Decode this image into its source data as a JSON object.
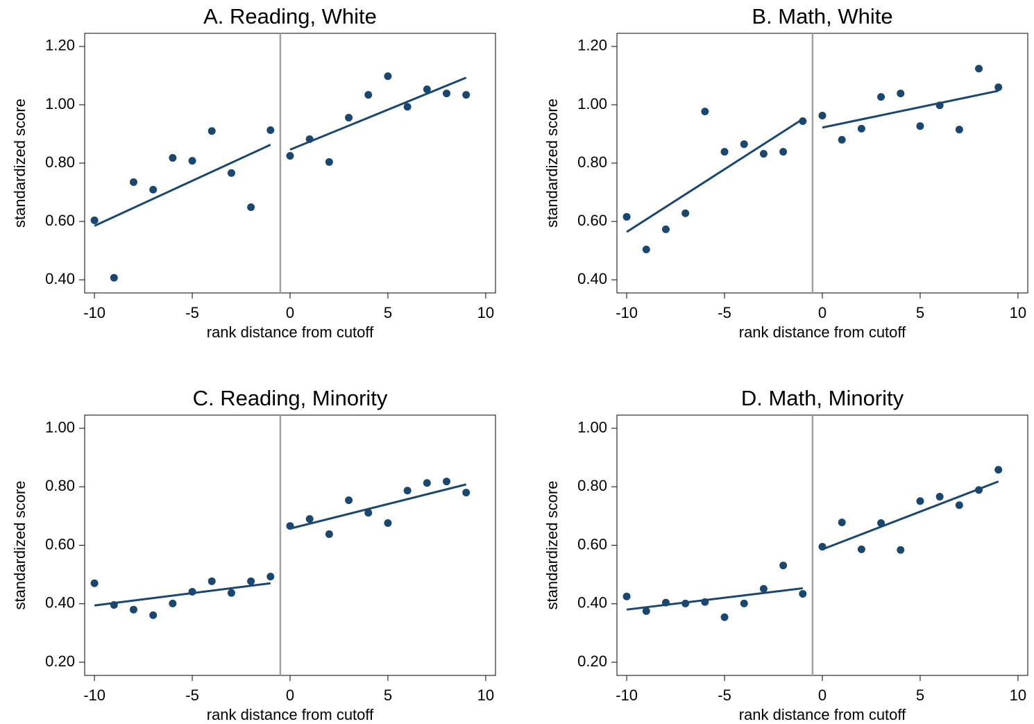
{
  "chart_data": [
    {
      "type": "scatter",
      "title": "A. Reading, White",
      "xlabel": "rank distance from cutoff",
      "ylabel": "standardized score",
      "x": [
        -10,
        -9,
        -8,
        -7,
        -6,
        -5,
        -4,
        -3,
        -2,
        -1,
        0,
        1,
        2,
        3,
        4,
        5,
        6,
        7,
        8,
        9
      ],
      "values": [
        0.604,
        0.407,
        0.735,
        0.709,
        0.818,
        0.808,
        0.91,
        0.766,
        0.649,
        0.913,
        0.825,
        0.882,
        0.804,
        0.956,
        1.034,
        1.098,
        0.993,
        1.053,
        1.039,
        1.034
      ],
      "fit_left": {
        "x": [
          -10,
          -1
        ],
        "y": [
          0.585,
          0.863
        ]
      },
      "fit_right": {
        "x": [
          0,
          9
        ],
        "y": [
          0.846,
          1.093
        ]
      },
      "vline": -0.5,
      "color": "#1a476f",
      "vline_color": "#a0a0a0",
      "xlim": [
        -10.5,
        10.5
      ],
      "ylim": [
        0.355,
        1.245
      ],
      "xticks": [
        -10,
        -5,
        0,
        5,
        10
      ],
      "yticks": [
        {
          "value": 0.4,
          "label": "0.40"
        },
        {
          "value": 0.6,
          "label": "0.60"
        },
        {
          "value": 0.8,
          "label": "0.80"
        },
        {
          "value": 1.0,
          "label": "1.00"
        },
        {
          "value": 1.2,
          "label": "1.20"
        }
      ]
    },
    {
      "type": "scatter",
      "title": "B. Math, White",
      "xlabel": "rank distance from cutoff",
      "ylabel": "standardized score",
      "x": [
        -10,
        -9,
        -8,
        -7,
        -6,
        -5,
        -4,
        -3,
        -2,
        -1,
        0,
        1,
        2,
        3,
        4,
        5,
        6,
        7,
        8,
        9
      ],
      "values": [
        0.616,
        0.504,
        0.573,
        0.628,
        0.977,
        0.839,
        0.865,
        0.832,
        0.839,
        0.944,
        0.963,
        0.88,
        0.918,
        1.027,
        1.039,
        0.927,
        0.998,
        0.915,
        1.124,
        1.06
      ],
      "fit_left": {
        "x": [
          -10,
          -1
        ],
        "y": [
          0.564,
          0.951
        ]
      },
      "fit_right": {
        "x": [
          0,
          9
        ],
        "y": [
          0.922,
          1.048
        ]
      },
      "vline": -0.5,
      "color": "#1a476f",
      "vline_color": "#a0a0a0",
      "xlim": [
        -10.5,
        10.5
      ],
      "ylim": [
        0.355,
        1.245
      ],
      "xticks": [
        -10,
        -5,
        0,
        5,
        10
      ],
      "yticks": [
        {
          "value": 0.4,
          "label": "0.40"
        },
        {
          "value": 0.6,
          "label": "0.60"
        },
        {
          "value": 0.8,
          "label": "0.80"
        },
        {
          "value": 1.0,
          "label": "1.00"
        },
        {
          "value": 1.2,
          "label": "1.20"
        }
      ]
    },
    {
      "type": "scatter",
      "title": "C. Reading, Minority",
      "xlabel": "rank distance from cutoff",
      "ylabel": "standardized score",
      "x": [
        -10,
        -9,
        -8,
        -7,
        -6,
        -5,
        -4,
        -3,
        -2,
        -1,
        0,
        1,
        2,
        3,
        4,
        5,
        6,
        7,
        8,
        9
      ],
      "values": [
        0.47,
        0.396,
        0.38,
        0.361,
        0.401,
        0.441,
        0.477,
        0.437,
        0.477,
        0.493,
        0.666,
        0.69,
        0.638,
        0.754,
        0.711,
        0.676,
        0.787,
        0.813,
        0.818,
        0.78
      ],
      "fit_left": {
        "x": [
          -10,
          -1
        ],
        "y": [
          0.394,
          0.47
        ]
      },
      "fit_right": {
        "x": [
          0,
          9
        ],
        "y": [
          0.657,
          0.808
        ]
      },
      "vline": -0.5,
      "color": "#1a476f",
      "vline_color": "#a0a0a0",
      "xlim": [
        -10.5,
        10.5
      ],
      "ylim": [
        0.155,
        1.045
      ],
      "xticks": [
        -10,
        -5,
        0,
        5,
        10
      ],
      "yticks": [
        {
          "value": 0.2,
          "label": "0.20"
        },
        {
          "value": 0.4,
          "label": "0.40"
        },
        {
          "value": 0.6,
          "label": "0.60"
        },
        {
          "value": 0.8,
          "label": "0.80"
        },
        {
          "value": 1.0,
          "label": "1.00"
        }
      ]
    },
    {
      "type": "scatter",
      "title": "D. Math, Minority",
      "xlabel": "rank distance from cutoff",
      "ylabel": "standardized score",
      "x": [
        -10,
        -9,
        -8,
        -7,
        -6,
        -5,
        -4,
        -3,
        -2,
        -1,
        0,
        1,
        2,
        3,
        4,
        5,
        6,
        7,
        8,
        9
      ],
      "values": [
        0.425,
        0.375,
        0.404,
        0.401,
        0.406,
        0.354,
        0.401,
        0.451,
        0.531,
        0.434,
        0.595,
        0.678,
        0.586,
        0.676,
        0.584,
        0.751,
        0.766,
        0.737,
        0.789,
        0.858
      ],
      "fit_left": {
        "x": [
          -10,
          -1
        ],
        "y": [
          0.38,
          0.453
        ]
      },
      "fit_right": {
        "x": [
          0,
          9
        ],
        "y": [
          0.586,
          0.818
        ]
      },
      "vline": -0.5,
      "color": "#1a476f",
      "vline_color": "#a0a0a0",
      "xlim": [
        -10.5,
        10.5
      ],
      "ylim": [
        0.155,
        1.045
      ],
      "xticks": [
        -10,
        -5,
        0,
        5,
        10
      ],
      "yticks": [
        {
          "value": 0.2,
          "label": "0.20"
        },
        {
          "value": 0.4,
          "label": "0.40"
        },
        {
          "value": 0.6,
          "label": "0.60"
        },
        {
          "value": 0.8,
          "label": "0.80"
        },
        {
          "value": 1.0,
          "label": "1.00"
        }
      ]
    }
  ]
}
